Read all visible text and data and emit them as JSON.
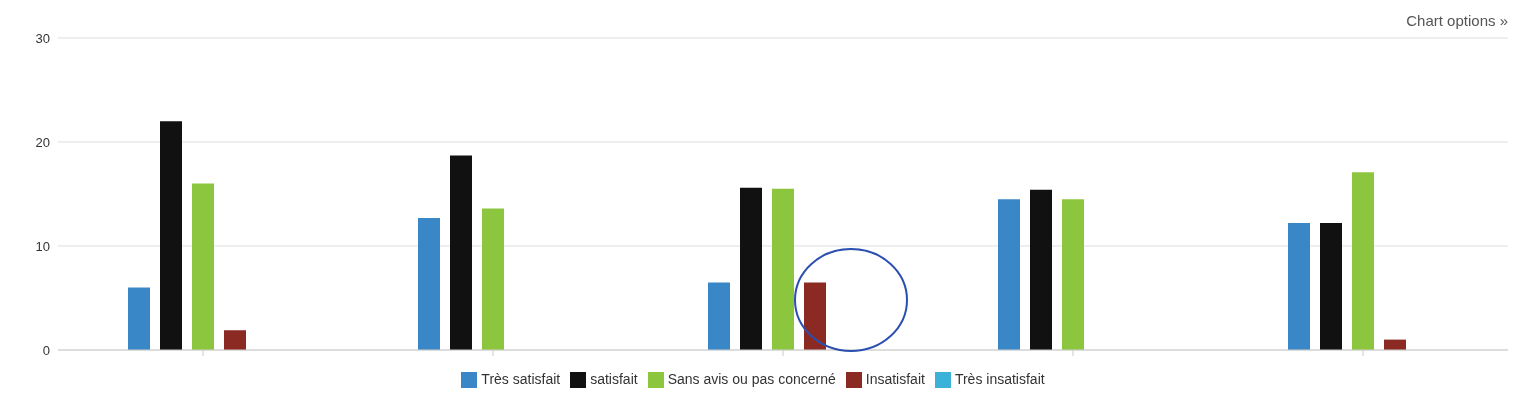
{
  "chart_data": {
    "type": "bar",
    "categories": [
      null,
      null,
      null,
      null,
      null
    ],
    "series": [
      {
        "name": "Très satisfait",
        "color": "#3a87c8",
        "values": [
          6,
          12.7,
          6.5,
          14.5,
          12.2
        ]
      },
      {
        "name": "satisfait",
        "color": "#111111",
        "values": [
          22,
          18.7,
          15.6,
          15.4,
          12.2
        ]
      },
      {
        "name": "Sans avis ou pas concerné",
        "color": "#8cc63f",
        "values": [
          16,
          13.6,
          15.5,
          14.5,
          17.1
        ]
      },
      {
        "name": "Insatisfait",
        "color": "#8b2a22",
        "values": [
          1.9,
          null,
          6.5,
          null,
          1
        ]
      },
      {
        "name": "Très insatisfait",
        "color": "#3bb3d8",
        "values": [
          null,
          null,
          null,
          null,
          null
        ]
      }
    ],
    "ylim": [
      0,
      30
    ],
    "yticks": [
      0,
      10,
      20,
      30
    ],
    "grid": "y",
    "legend": "bottom",
    "annotations": [
      "Chart options »"
    ]
  }
}
